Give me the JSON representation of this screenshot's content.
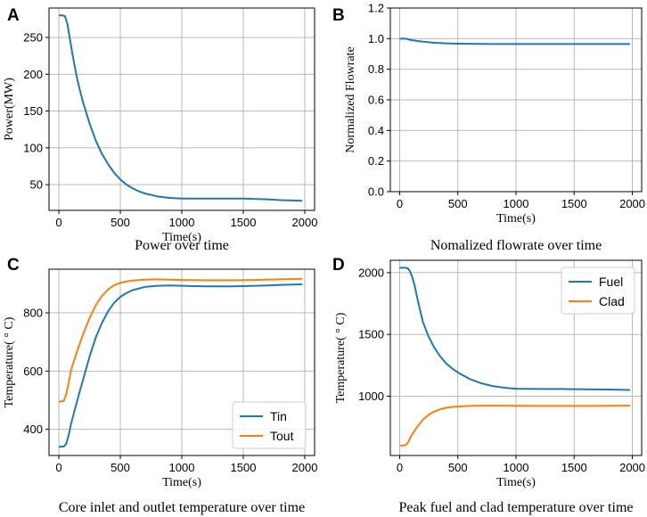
{
  "colors": {
    "blue": "#1f77b4",
    "orange": "#ff7f0e",
    "grid": "#b0b0b0",
    "axis": "#000000"
  },
  "chart_data": [
    {
      "letter": "A",
      "type": "line",
      "title": "Power over time",
      "xlabel": "Time(s)",
      "ylabel": "Power(MW)",
      "xlim": [
        -80,
        2080
      ],
      "ylim": [
        15,
        290
      ],
      "xticks": [
        0,
        500,
        1000,
        1500,
        2000
      ],
      "xtick_labels": [
        "0",
        "500",
        "1000",
        "1500",
        "2000"
      ],
      "yticks": [
        50,
        100,
        150,
        200,
        250
      ],
      "ytick_labels": [
        "50",
        "100",
        "150",
        "200",
        "250"
      ],
      "grid": true,
      "legend": null,
      "series": [
        {
          "name": "Power",
          "color": "#1f77b4",
          "x": [
            0,
            30,
            50,
            70,
            90,
            110,
            130,
            150,
            175,
            200,
            250,
            300,
            350,
            400,
            450,
            500,
            550,
            600,
            650,
            700,
            800,
            900,
            1000,
            1100,
            1200,
            1300,
            1400,
            1500,
            1600,
            1700,
            1800,
            1900,
            1980
          ],
          "y": [
            280,
            280,
            279,
            268,
            248,
            228,
            210,
            193,
            176,
            160,
            133,
            110,
            92,
            78,
            66,
            57,
            50,
            45,
            41,
            38,
            34,
            32,
            31,
            31,
            31,
            31,
            31,
            31,
            30.5,
            30,
            29,
            28.5,
            28
          ]
        }
      ]
    },
    {
      "letter": "B",
      "type": "line",
      "title": "Nomalized flowrate over time",
      "xlabel": "Time(s)",
      "ylabel": "Normalized Flowrate",
      "xlim": [
        -80,
        2080
      ],
      "ylim": [
        0,
        1.2
      ],
      "xticks": [
        0,
        500,
        1000,
        1500,
        2000
      ],
      "xtick_labels": [
        "0",
        "500",
        "1000",
        "1500",
        "2000"
      ],
      "yticks": [
        0,
        0.2,
        0.4,
        0.6,
        0.8,
        1.0,
        1.2
      ],
      "ytick_labels": [
        "0.0",
        "0.2",
        "0.4",
        "0.6",
        "0.8",
        "1.0",
        "1.2"
      ],
      "grid": true,
      "legend": null,
      "series": [
        {
          "name": "Flowrate",
          "color": "#1f77b4",
          "x": [
            0,
            50,
            100,
            150,
            200,
            300,
            400,
            500,
            600,
            800,
            1000,
            1500,
            1980
          ],
          "y": [
            1.0,
            1.0,
            0.99,
            0.985,
            0.98,
            0.973,
            0.969,
            0.967,
            0.966,
            0.965,
            0.965,
            0.965,
            0.965
          ]
        }
      ]
    },
    {
      "letter": "C",
      "type": "line",
      "title": "Core inlet and outlet temperature over time",
      "xlabel": "Time(s)",
      "ylabel": "Temperature( ° C)",
      "xlim": [
        -80,
        2080
      ],
      "ylim": [
        310,
        950
      ],
      "xticks": [
        0,
        500,
        1000,
        1500,
        2000
      ],
      "xtick_labels": [
        "0",
        "500",
        "1000",
        "1500",
        "2000"
      ],
      "yticks": [
        400,
        600,
        800
      ],
      "ytick_labels": [
        "400",
        "600",
        "800"
      ],
      "grid": true,
      "legend": "lower-right",
      "series": [
        {
          "name": "Tin",
          "color": "#1f77b4",
          "x": [
            0,
            40,
            60,
            80,
            100,
            150,
            200,
            250,
            300,
            350,
            400,
            450,
            500,
            550,
            600,
            700,
            800,
            900,
            1000,
            1100,
            1200,
            1300,
            1400,
            1500,
            1600,
            1700,
            1800,
            1900,
            1980
          ],
          "y": [
            340,
            341,
            350,
            380,
            420,
            500,
            575,
            650,
            715,
            765,
            805,
            835,
            855,
            868,
            878,
            889,
            893,
            894,
            893,
            892,
            891,
            891,
            891,
            892,
            893,
            894,
            896,
            897,
            898
          ]
        },
        {
          "name": "Tout",
          "color": "#ff7f0e",
          "x": [
            0,
            40,
            60,
            80,
            100,
            150,
            200,
            250,
            300,
            350,
            400,
            450,
            500,
            550,
            600,
            700,
            800,
            900,
            1000,
            1200,
            1400,
            1600,
            1800,
            1980
          ],
          "y": [
            495,
            497,
            520,
            560,
            605,
            670,
            730,
            782,
            826,
            858,
            880,
            895,
            903,
            908,
            911,
            914,
            915,
            914,
            913,
            912,
            912,
            913,
            915,
            917
          ]
        }
      ]
    },
    {
      "letter": "D",
      "type": "line",
      "title": "Peak fuel and clad temperature over time",
      "xlabel": "Time(s)",
      "ylabel": "Temperature( ° C)",
      "xlim": [
        -80,
        2080
      ],
      "ylim": [
        520,
        2100
      ],
      "xticks": [
        0,
        500,
        1000,
        1500,
        2000
      ],
      "xtick_labels": [
        "0",
        "500",
        "1000",
        "1500",
        "2000"
      ],
      "yticks": [
        1000,
        1500,
        2000
      ],
      "ytick_labels": [
        "1000",
        "1500",
        "2000"
      ],
      "grid": true,
      "legend": "upper-right",
      "series": [
        {
          "name": "Fuel",
          "color": "#1f77b4",
          "x": [
            0,
            50,
            70,
            90,
            110,
            130,
            150,
            175,
            200,
            250,
            300,
            350,
            400,
            450,
            500,
            600,
            700,
            800,
            900,
            1000,
            1200,
            1400,
            1600,
            1800,
            1980
          ],
          "y": [
            2040,
            2040,
            2035,
            2010,
            1960,
            1890,
            1800,
            1700,
            1600,
            1480,
            1390,
            1320,
            1265,
            1225,
            1192,
            1140,
            1105,
            1082,
            1068,
            1060,
            1058,
            1058,
            1056,
            1054,
            1050
          ]
        },
        {
          "name": "Clad",
          "color": "#ff7f0e",
          "x": [
            0,
            40,
            60,
            80,
            100,
            150,
            200,
            250,
            300,
            350,
            400,
            450,
            500,
            600,
            700,
            800,
            1000,
            1200,
            1400,
            1600,
            1800,
            1980
          ],
          "y": [
            600,
            601,
            610,
            640,
            680,
            750,
            810,
            850,
            877,
            895,
            906,
            913,
            917,
            921,
            923,
            923,
            922,
            921,
            921,
            921,
            922,
            923
          ]
        }
      ]
    }
  ]
}
